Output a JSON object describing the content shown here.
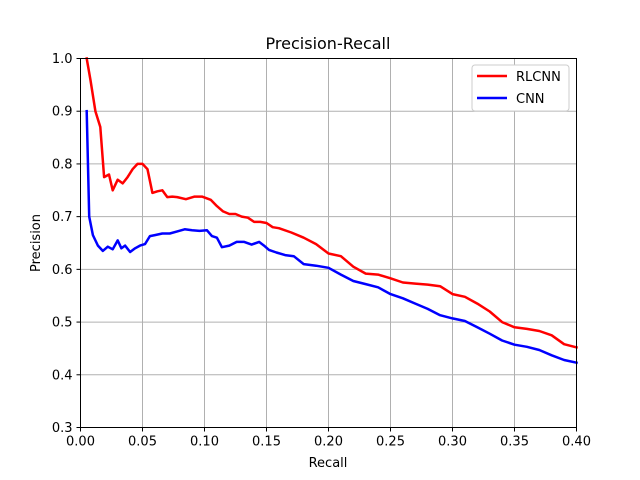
{
  "chart_data": {
    "type": "line",
    "title": "Precision-Recall",
    "xlabel": "Recall",
    "ylabel": "Precision",
    "xlim": [
      0.0,
      0.4
    ],
    "ylim": [
      0.3,
      1.0
    ],
    "grid": true,
    "legend_position": "top-right",
    "xticks": [
      "0.00",
      "0.05",
      "0.10",
      "0.15",
      "0.20",
      "0.25",
      "0.30",
      "0.35",
      "0.40"
    ],
    "yticks": [
      "0.3",
      "0.4",
      "0.5",
      "0.6",
      "0.7",
      "0.8",
      "0.9",
      "1.0"
    ],
    "series": [
      {
        "name": "RLCNN",
        "color": "#ff0000",
        "x": [
          0.005,
          0.008,
          0.012,
          0.016,
          0.019,
          0.023,
          0.026,
          0.03,
          0.034,
          0.038,
          0.042,
          0.046,
          0.05,
          0.054,
          0.058,
          0.062,
          0.066,
          0.07,
          0.074,
          0.078,
          0.085,
          0.092,
          0.098,
          0.105,
          0.11,
          0.115,
          0.12,
          0.125,
          0.13,
          0.135,
          0.14,
          0.145,
          0.15,
          0.155,
          0.16,
          0.17,
          0.18,
          0.19,
          0.2,
          0.21,
          0.22,
          0.23,
          0.24,
          0.25,
          0.26,
          0.27,
          0.28,
          0.29,
          0.3,
          0.31,
          0.32,
          0.33,
          0.34,
          0.35,
          0.36,
          0.37,
          0.38,
          0.39,
          0.4
        ],
        "y": [
          1.0,
          0.96,
          0.9,
          0.87,
          0.775,
          0.78,
          0.75,
          0.77,
          0.763,
          0.775,
          0.79,
          0.8,
          0.8,
          0.79,
          0.745,
          0.748,
          0.75,
          0.737,
          0.738,
          0.737,
          0.733,
          0.738,
          0.738,
          0.732,
          0.72,
          0.71,
          0.705,
          0.705,
          0.7,
          0.698,
          0.69,
          0.69,
          0.688,
          0.68,
          0.678,
          0.67,
          0.66,
          0.648,
          0.63,
          0.625,
          0.605,
          0.592,
          0.59,
          0.583,
          0.575,
          0.573,
          0.571,
          0.568,
          0.553,
          0.548,
          0.535,
          0.52,
          0.5,
          0.49,
          0.487,
          0.483,
          0.475,
          0.458,
          0.452
        ]
      },
      {
        "name": "CNN",
        "color": "#0000ff",
        "x": [
          0.005,
          0.007,
          0.01,
          0.014,
          0.018,
          0.022,
          0.026,
          0.03,
          0.033,
          0.036,
          0.04,
          0.044,
          0.048,
          0.052,
          0.056,
          0.06,
          0.066,
          0.072,
          0.078,
          0.084,
          0.09,
          0.096,
          0.102,
          0.106,
          0.11,
          0.114,
          0.12,
          0.126,
          0.132,
          0.138,
          0.144,
          0.148,
          0.152,
          0.158,
          0.165,
          0.172,
          0.18,
          0.19,
          0.2,
          0.21,
          0.22,
          0.23,
          0.24,
          0.25,
          0.26,
          0.27,
          0.28,
          0.29,
          0.3,
          0.31,
          0.32,
          0.33,
          0.34,
          0.35,
          0.36,
          0.37,
          0.38,
          0.39,
          0.4
        ],
        "y": [
          0.9,
          0.7,
          0.665,
          0.645,
          0.635,
          0.643,
          0.638,
          0.655,
          0.64,
          0.645,
          0.633,
          0.64,
          0.645,
          0.648,
          0.663,
          0.665,
          0.668,
          0.668,
          0.672,
          0.676,
          0.674,
          0.673,
          0.674,
          0.663,
          0.66,
          0.642,
          0.645,
          0.652,
          0.652,
          0.647,
          0.652,
          0.645,
          0.637,
          0.632,
          0.627,
          0.625,
          0.61,
          0.607,
          0.603,
          0.59,
          0.578,
          0.572,
          0.566,
          0.553,
          0.545,
          0.535,
          0.525,
          0.513,
          0.507,
          0.502,
          0.49,
          0.478,
          0.465,
          0.457,
          0.453,
          0.447,
          0.437,
          0.428,
          0.423
        ]
      }
    ]
  }
}
